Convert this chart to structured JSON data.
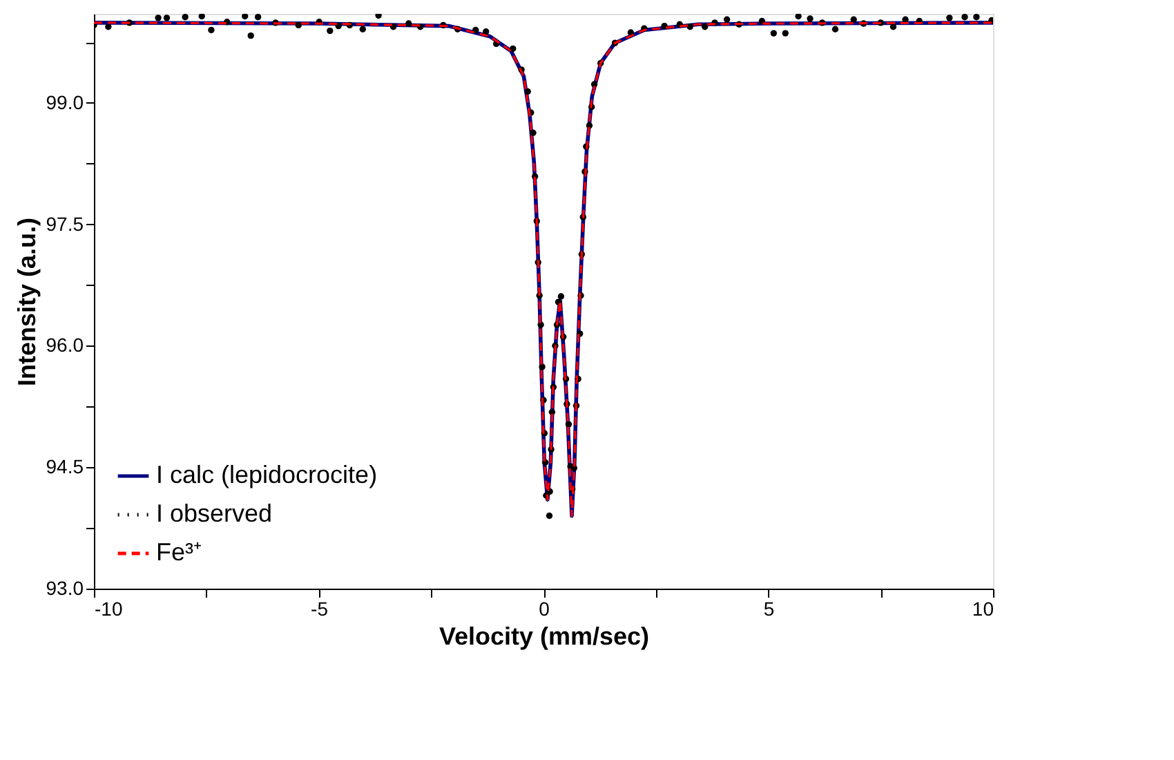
{
  "chart_data": {
    "type": "line",
    "xlabel": "Velocity (mm/sec)",
    "ylabel": "Intensity (a.u.)",
    "xlim": [
      -10,
      10
    ],
    "ylim": [
      93.0,
      100.1
    ],
    "xticks": [
      -10,
      {
        "value": -7.5,
        "label": null
      },
      -5,
      {
        "value": -2.5,
        "label": null
      },
      0,
      {
        "value": 2.5,
        "label": null
      },
      5,
      {
        "value": 7.5,
        "label": null
      },
      10
    ],
    "yticks": [
      {
        "value": 93,
        "label": "93.0"
      },
      {
        "value": 93.75,
        "label": null
      },
      {
        "value": 94.5,
        "label": "94.5"
      },
      {
        "value": 95.25,
        "label": null
      },
      {
        "value": 96,
        "label": "96.0"
      },
      {
        "value": 96.75,
        "label": null
      },
      {
        "value": 97.5,
        "label": "97.5"
      },
      {
        "value": 98.25,
        "label": null
      },
      {
        "value": 99,
        "label": "99.0"
      },
      {
        "value": 99.75,
        "label": null
      }
    ],
    "grid": false,
    "legend": "bottom left",
    "series": [
      {
        "name": "I calc (lepidocrocite)",
        "color": "#000080",
        "line_style": "solid",
        "x": [
          -10,
          -5,
          -2.11,
          -1.19,
          -0.72,
          -0.44,
          -0.31,
          -0.21,
          -0.15,
          -0.09,
          -0.04,
          0.02,
          0.09,
          0.16,
          0.22,
          0.3,
          0.37,
          0.46,
          0.54,
          0.63,
          0.69,
          0.74,
          0.81,
          0.89,
          0.96,
          1.08,
          1.27,
          1.59,
          2.24,
          3.44,
          5,
          10
        ],
        "values": [
          99.99,
          99.98,
          99.95,
          99.82,
          99.64,
          99.33,
          98.87,
          98.26,
          97.54,
          96.62,
          95.59,
          94.56,
          94.1,
          94.56,
          95.59,
          96.26,
          96.56,
          95.85,
          95.08,
          93.9,
          94.56,
          95.59,
          96.62,
          97.64,
          98.41,
          99.08,
          99.49,
          99.74,
          99.9,
          99.97,
          99.98,
          99.99
        ]
      },
      {
        "name": "I observed",
        "color": "#000000",
        "type": "scatter",
        "marker": "circle",
        "x": [
          -10.0,
          -9.68,
          -9.21,
          -8.57,
          -8.38,
          -7.97,
          -7.6,
          -7.39,
          -7.04,
          -6.64,
          -6.51,
          -6.35,
          -5.96,
          -5.45,
          -4.99,
          -4.75,
          -4.56,
          -4.31,
          -4.02,
          -3.67,
          -3.34,
          -3.0,
          -2.74,
          -2.23,
          -1.91,
          -1.51,
          -1.28,
          -1.05,
          -0.68,
          -0.49,
          -0.35,
          -0.28,
          -0.23,
          -0.19,
          -0.15,
          -0.12,
          -0.09,
          -0.06,
          -0.03,
          0.0,
          0.02,
          0.04,
          0.06,
          0.13,
          0.14,
          0.17,
          0.19,
          0.22,
          0.26,
          0.3,
          0.33,
          0.39,
          0.44,
          0.5,
          0.52,
          0.56,
          0.6,
          0.64,
          0.68,
          0.73,
          0.77,
          0.81,
          0.83,
          0.85,
          0.88,
          0.92,
          0.95,
          1.02,
          1.07,
          1.13,
          1.27,
          1.59,
          1.94,
          2.24,
          2.69,
          3.03,
          3.26,
          3.59,
          3.81,
          4.08,
          4.35,
          4.86,
          5.12,
          5.38,
          5.67,
          5.93,
          6.2,
          6.49,
          6.9,
          7.12,
          7.5,
          7.78,
          8.05,
          8.36,
          9.03,
          9.37,
          9.63,
          9.97
        ],
        "values": [
          99.96,
          99.94,
          99.99,
          100.05,
          100.05,
          100.06,
          100.07,
          99.9,
          100.0,
          100.07,
          99.83,
          100.06,
          99.99,
          99.96,
          100.0,
          99.89,
          99.95,
          99.96,
          99.91,
          100.08,
          99.94,
          99.98,
          99.94,
          99.96,
          99.91,
          99.9,
          99.88,
          99.73,
          99.67,
          99.41,
          99.14,
          98.88,
          98.63,
          98.09,
          97.54,
          97.03,
          96.62,
          96.26,
          95.74,
          95.33,
          94.92,
          94.56,
          94.15,
          93.9,
          94.2,
          94.72,
          95.18,
          95.49,
          96.0,
          96.26,
          96.54,
          96.61,
          96.11,
          95.59,
          95.28,
          95.03,
          94.51,
          94.23,
          94.49,
          95.26,
          95.59,
          96.15,
          96.62,
          97.13,
          97.59,
          98.15,
          98.46,
          98.72,
          98.95,
          99.23,
          99.49,
          99.74,
          99.87,
          99.92,
          99.95,
          99.97,
          99.94,
          99.94,
          99.99,
          100.03,
          99.97,
          100.01,
          99.86,
          99.86,
          100.07,
          100.04,
          99.99,
          99.91,
          100.03,
          99.98,
          99.99,
          99.94,
          100.03,
          100.01,
          100.05,
          100.06,
          100.06,
          100.02
        ]
      },
      {
        "name": "Fe³⁺",
        "color": "#ff0000",
        "line_style": "dashed",
        "x": [
          -10,
          -5,
          -2.11,
          -1.19,
          -0.72,
          -0.44,
          -0.31,
          -0.21,
          -0.15,
          -0.09,
          -0.04,
          0.02,
          0.09,
          0.16,
          0.22,
          0.3,
          0.37,
          0.46,
          0.54,
          0.63,
          0.69,
          0.74,
          0.81,
          0.89,
          0.96,
          1.08,
          1.27,
          1.59,
          2.24,
          3.44,
          5,
          10
        ],
        "values": [
          99.99,
          99.98,
          99.95,
          99.82,
          99.64,
          99.33,
          98.87,
          98.26,
          97.54,
          96.62,
          95.59,
          94.56,
          94.1,
          94.56,
          95.59,
          96.26,
          96.56,
          95.85,
          95.08,
          93.9,
          94.56,
          95.59,
          96.62,
          97.64,
          98.41,
          99.08,
          99.49,
          99.74,
          99.9,
          99.97,
          99.98,
          99.99
        ]
      }
    ]
  }
}
